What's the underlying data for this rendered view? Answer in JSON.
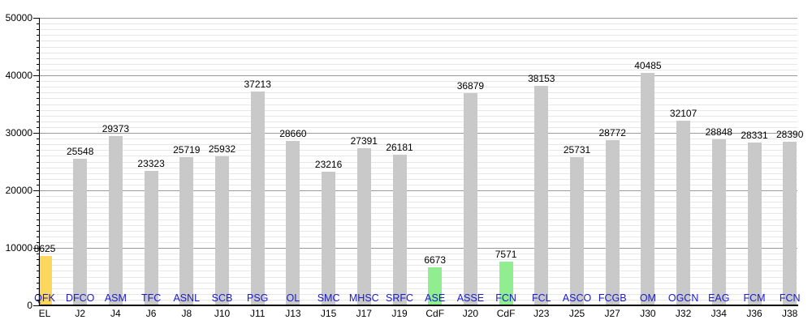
{
  "chart_data": {
    "type": "bar",
    "title": "",
    "xlabel": "",
    "ylabel": "",
    "ylim": [
      0,
      50000
    ],
    "y_major_ticks": [
      0,
      10000,
      20000,
      30000,
      40000,
      50000
    ],
    "y_major_tick_labels": [
      "0",
      "10000",
      "20000",
      "30000",
      "40000",
      "50000"
    ],
    "y_minor_step": 1000,
    "grid": "horizontal, minor every 1000 (light), major every 10000 (dark)",
    "legend": "none",
    "colors": {
      "bar_default": "#c9c9c9",
      "bar_yellow_highlight": "#fbd75b",
      "bar_green_highlight": "#90ee90",
      "team_label_text": "#1a1acc",
      "value_label_text": "#000000",
      "axis": "#000000",
      "grid_minor": "#e7e7e7",
      "grid_major": "#9a9a9a",
      "background": "#ffffff"
    },
    "bars": [
      {
        "x_label": "EL",
        "team": "QFK",
        "value": 8625,
        "color": "#fbd75b"
      },
      {
        "x_label": "J2",
        "team": "DFCO",
        "value": 25548,
        "color": "#c9c9c9"
      },
      {
        "x_label": "J4",
        "team": "ASM",
        "value": 29373,
        "color": "#c9c9c9"
      },
      {
        "x_label": "J6",
        "team": "TFC",
        "value": 23323,
        "color": "#c9c9c9"
      },
      {
        "x_label": "J8",
        "team": "ASNL",
        "value": 25719,
        "color": "#c9c9c9"
      },
      {
        "x_label": "J10",
        "team": "SCB",
        "value": 25932,
        "color": "#c9c9c9"
      },
      {
        "x_label": "J11",
        "team": "PSG",
        "value": 37213,
        "color": "#c9c9c9"
      },
      {
        "x_label": "J13",
        "team": "OL",
        "value": 28660,
        "color": "#c9c9c9"
      },
      {
        "x_label": "J15",
        "team": "SMC",
        "value": 23216,
        "color": "#c9c9c9"
      },
      {
        "x_label": "J17",
        "team": "MHSC",
        "value": 27391,
        "color": "#c9c9c9"
      },
      {
        "x_label": "J19",
        "team": "SRFC",
        "value": 26181,
        "color": "#c9c9c9"
      },
      {
        "x_label": "CdF",
        "team": "ASE",
        "value": 6673,
        "color": "#90ee90"
      },
      {
        "x_label": "J20",
        "team": "ASSE",
        "value": 36879,
        "color": "#c9c9c9"
      },
      {
        "x_label": "CdF",
        "team": "FCN",
        "value": 7571,
        "color": "#90ee90"
      },
      {
        "x_label": "J23",
        "team": "FCL",
        "value": 38153,
        "color": "#c9c9c9"
      },
      {
        "x_label": "J25",
        "team": "ASCO",
        "value": 25731,
        "color": "#c9c9c9"
      },
      {
        "x_label": "J27",
        "team": "FCGB",
        "value": 28772,
        "color": "#c9c9c9"
      },
      {
        "x_label": "J30",
        "team": "OM",
        "value": 40485,
        "color": "#c9c9c9"
      },
      {
        "x_label": "J32",
        "team": "OGCN",
        "value": 32107,
        "color": "#c9c9c9"
      },
      {
        "x_label": "J34",
        "team": "EAG",
        "value": 28848,
        "color": "#c9c9c9"
      },
      {
        "x_label": "J36",
        "team": "FCM",
        "value": 28331,
        "color": "#c9c9c9"
      },
      {
        "x_label": "J38",
        "team": "FCN",
        "value": 28390,
        "color": "#c9c9c9"
      }
    ]
  }
}
